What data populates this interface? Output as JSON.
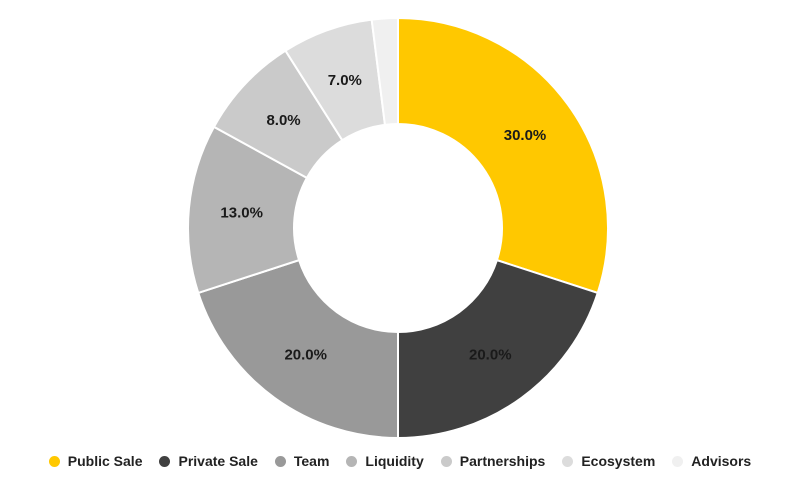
{
  "chart_data": {
    "type": "pie",
    "variant": "donut",
    "categories": [
      "Public Sale",
      "Private Sale",
      "Team",
      "Liquidity",
      "Partnerships",
      "Ecosystem",
      "Advisors"
    ],
    "values": [
      30.0,
      20.0,
      20.0,
      13.0,
      8.0,
      7.0,
      2.0
    ],
    "value_labels": [
      "30.0%",
      "20.0%",
      "20.0%",
      "13.0%",
      "8.0%",
      "7.0%",
      ""
    ],
    "colors": [
      "#FFC800",
      "#404040",
      "#999999",
      "#B5B5B5",
      "#CACACA",
      "#DCDCDC",
      "#F0F0F0"
    ],
    "title": "",
    "legend_position": "bottom"
  }
}
